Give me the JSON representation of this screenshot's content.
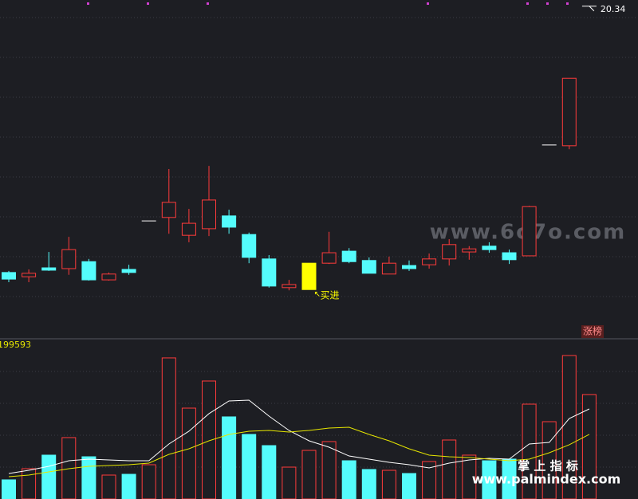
{
  "chart_data": {
    "type": "candlestick",
    "ylim": [
      11.76,
      20.5
    ],
    "open": [
      13.47,
      13.36,
      13.59,
      13.57,
      13.75,
      13.28,
      13.55,
      14.8,
      14.89,
      14.43,
      14.6,
      14.93,
      14.45,
      13.82,
      13.08,
      13.03,
      13.71,
      14.02,
      13.78,
      13.43,
      13.65,
      13.67,
      13.82,
      14.0,
      14.15,
      13.98,
      13.9,
      16.76,
      16.74,
      20.34
    ],
    "close": [
      13.3,
      13.45,
      13.53,
      14.06,
      13.28,
      13.43,
      13.47,
      14.8,
      15.28,
      14.74,
      15.34,
      14.64,
      13.86,
      13.12,
      13.16,
      13.71,
      13.98,
      13.75,
      13.45,
      13.71,
      13.57,
      13.82,
      14.19,
      14.08,
      14.06,
      13.8,
      15.17,
      16.76,
      18.48,
      20.34
    ],
    "high": [
      13.51,
      13.55,
      14.0,
      14.39,
      13.82,
      13.47,
      13.67,
      14.8,
      16.14,
      15.11,
      16.22,
      15.09,
      14.5,
      13.92,
      13.28,
      13.71,
      14.52,
      14.1,
      13.86,
      13.88,
      13.78,
      13.96,
      14.33,
      14.15,
      14.25,
      14.06,
      15.19,
      16.76,
      18.48,
      20.34
    ],
    "low": [
      13.22,
      13.22,
      13.51,
      13.41,
      13.26,
      13.26,
      13.41,
      14.8,
      14.47,
      14.25,
      14.41,
      14.47,
      13.71,
      13.08,
      13.01,
      13.03,
      13.69,
      13.71,
      13.45,
      13.43,
      13.51,
      13.57,
      13.65,
      13.8,
      13.98,
      13.69,
      13.9,
      16.76,
      16.65,
      20.34
    ],
    "up_color": "#ff3b3b",
    "down_color": "#54fcfc",
    "flat_color": "#ffffff",
    "signal_labels": [
      null,
      null,
      null,
      null,
      null,
      null,
      null,
      null,
      null,
      null,
      null,
      null,
      null,
      null,
      null,
      "买进",
      null,
      null,
      null,
      null,
      null,
      null,
      null,
      null,
      null,
      null,
      null,
      null,
      null,
      null
    ],
    "signal_color": "#ffff00",
    "badge": "涨榜",
    "volume": [
      36600,
      57900,
      83800,
      117300,
      80700,
      45700,
      47200,
      65500,
      269600,
      173600,
      225400,
      156900,
      123400,
      102000,
      60900,
      92900,
      109700,
      73100,
      56400,
      54800,
      48700,
      71600,
      112700,
      83800,
      73100,
      76200,
      181200,
      147700,
      274100,
      199593
    ],
    "volume_ylim": [
      0,
      300000
    ],
    "volume_ma": [
      {
        "color": "#ffffff",
        "values": [
          48700,
          54800,
          62400,
          73100,
          76200,
          74600,
          73100,
          73100,
          105100,
          129500,
          163000,
          187300,
          188900,
          158400,
          131000,
          111200,
          99000,
          82200,
          76200,
          70100,
          65500,
          59400,
          68500,
          74600,
          77700,
          76200,
          105100,
          108100,
          153800,
          172100
        ]
      },
      {
        "color": "#e6e600",
        "values": [
          42600,
          45700,
          51800,
          57900,
          62400,
          64000,
          65500,
          68500,
          85300,
          95900,
          111200,
          123400,
          129500,
          131000,
          127900,
          131000,
          135500,
          137100,
          123400,
          111200,
          95900,
          83800,
          80700,
          79200,
          76200,
          73100,
          76200,
          88300,
          103600,
          123400
        ]
      }
    ],
    "watermarks": [
      "www.6o7o.com",
      "掌 上 指 标",
      "www.palmindex.com"
    ]
  }
}
